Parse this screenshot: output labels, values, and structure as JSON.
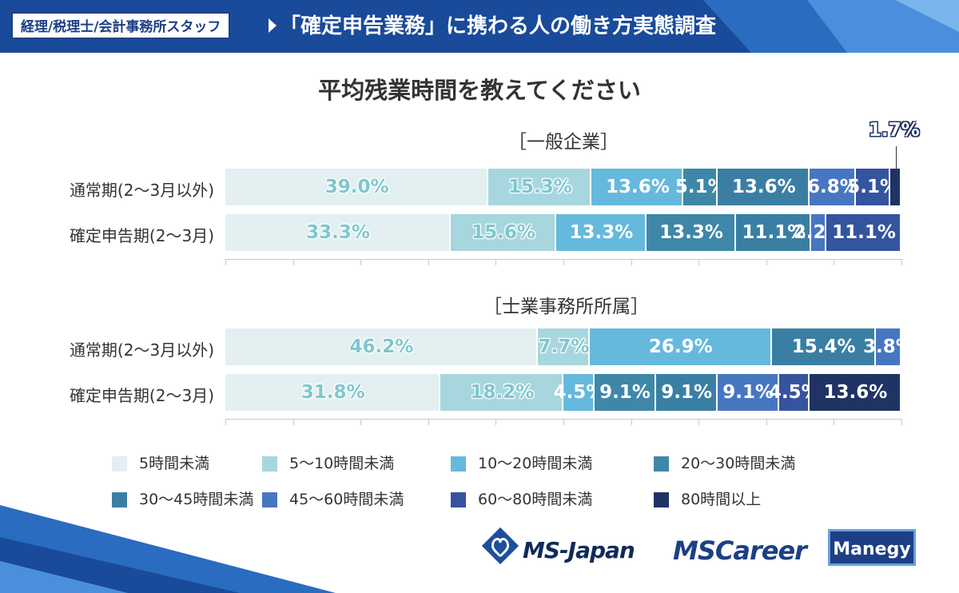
{
  "header": {
    "tag": "経理/税理士/会計事務所スタッフ",
    "survey_title": "「確定申告業務」に携わる人の働き方実態調査"
  },
  "question": "平均残業時間を教えてください",
  "logos": {
    "ms_japan": "MS-Japan",
    "ms_career": "MSCareer",
    "manegy": "Manegy"
  },
  "colors": {
    "banner": "#1d4f9e",
    "series": [
      "#e3eff1",
      "#a8d6de",
      "#65b9dd",
      "#3f87a8",
      "#3a7fa3",
      "#4776c1",
      "#35549f",
      "#1f3364"
    ]
  },
  "chart_data": {
    "type": "bar",
    "orientation": "horizontal-stacked-100",
    "legend": [
      "5時間未満",
      "5〜10時間未満",
      "10〜20時間未満",
      "20〜30時間未満",
      "30〜45時間未満",
      "45〜60時間未満",
      "60〜80時間未満",
      "80時間以上"
    ],
    "groups": [
      {
        "title": "［一般企業］",
        "rows": [
          {
            "label": "通常期(2〜3月以外)",
            "values": [
              39.0,
              15.3,
              13.6,
              5.1,
              13.6,
              6.8,
              5.1,
              1.7
            ],
            "value_labels": [
              "39.0%",
              "15.3%",
              "13.6%",
              "5.1%",
              "13.6%",
              "6.8%",
              "5.1%",
              "1.7%"
            ]
          },
          {
            "label": "確定申告期(2〜3月)",
            "values": [
              33.3,
              15.6,
              13.3,
              13.3,
              11.1,
              2.2,
              11.1,
              0
            ],
            "value_labels": [
              "33.3%",
              "15.6%",
              "13.3%",
              "13.3%",
              "11.1%",
              "2.2%",
              "11.1%",
              ""
            ]
          }
        ]
      },
      {
        "title": "［士業事務所所属］",
        "rows": [
          {
            "label": "通常期(2〜3月以外)",
            "values": [
              46.2,
              7.7,
              26.9,
              0,
              15.4,
              3.8,
              0,
              0
            ],
            "value_labels": [
              "46.2%",
              "7.7%",
              "26.9%",
              "",
              "15.4%",
              "3.8%",
              "",
              ""
            ]
          },
          {
            "label": "確定申告期(2〜3月)",
            "values": [
              31.8,
              18.2,
              4.5,
              9.1,
              9.1,
              9.1,
              4.5,
              13.6
            ],
            "value_labels": [
              "31.8%",
              "18.2%",
              "4.5%",
              "9.1%",
              "9.1%",
              "9.1%",
              "4.5%",
              "13.6%"
            ]
          }
        ]
      }
    ],
    "xlim": [
      0,
      100
    ]
  }
}
